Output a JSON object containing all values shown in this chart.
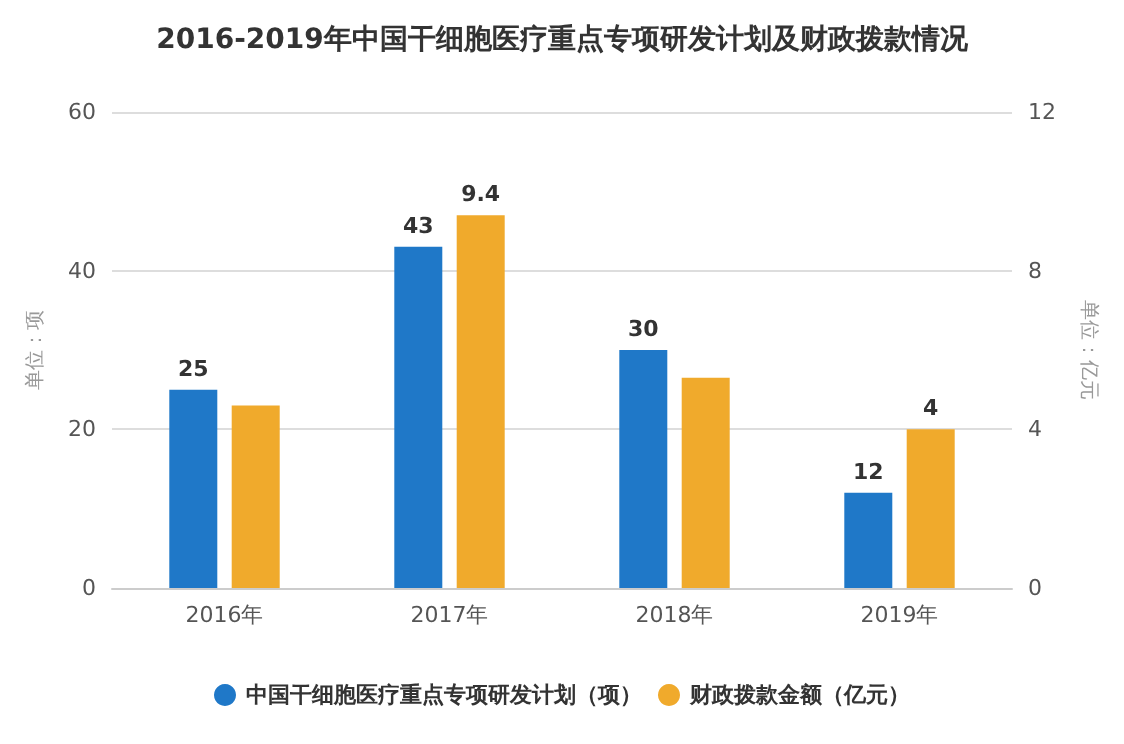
{
  "chart_data": {
    "type": "bar",
    "title": "2016-2019年中国干细胞医疗重点专项研发计划及财政拨款情况",
    "ylabel": "单位：项",
    "y2label": "单位：亿元",
    "categories": [
      "2016年",
      "2017年",
      "2018年",
      "2019年"
    ],
    "series": [
      {
        "name": "中国干细胞医疗重点专项研发计划（项）",
        "color": "#1f78c8",
        "values": [
          25,
          43,
          30,
          12
        ],
        "value_labels": [
          "25",
          "43",
          "30",
          "12"
        ]
      },
      {
        "name": "财政拨款金额（亿元）",
        "color": "#f0aa2c",
        "values": [
          4.6,
          9.4,
          5.3,
          4
        ],
        "axis": "y2",
        "value_labels": [
          null,
          "9.4",
          null,
          "4"
        ]
      }
    ],
    "ylim": [
      0,
      60
    ],
    "yticks": [
      0,
      20,
      40,
      60
    ],
    "y2lim": [
      0,
      12
    ],
    "y2ticks": [
      0,
      4,
      8,
      12
    ],
    "grid": "y",
    "legend": "bottom"
  }
}
